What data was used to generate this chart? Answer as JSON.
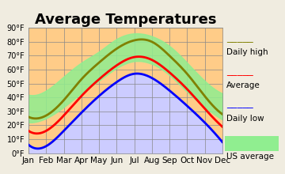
{
  "title": "Average Temperatures",
  "months": [
    "Jan",
    "Feb",
    "Mar",
    "Apr",
    "May",
    "Jun",
    "Jul",
    "Aug",
    "Sep",
    "Oct",
    "Nov",
    "Dec"
  ],
  "daily_high": [
    26,
    27,
    38,
    53,
    65,
    75,
    81,
    80,
    70,
    57,
    41,
    28
  ],
  "average": [
    16,
    16,
    27,
    41,
    53,
    63,
    69,
    67,
    58,
    46,
    32,
    19
  ],
  "daily_low": [
    6,
    5,
    16,
    29,
    41,
    51,
    57,
    54,
    45,
    34,
    22,
    8
  ],
  "us_high": [
    42,
    45,
    55,
    65,
    73,
    82,
    86,
    84,
    77,
    65,
    52,
    43
  ],
  "us_low": [
    22,
    25,
    33,
    43,
    52,
    61,
    66,
    64,
    56,
    44,
    33,
    24
  ],
  "ylim": [
    0,
    90
  ],
  "yticks": [
    0,
    10,
    20,
    30,
    40,
    50,
    60,
    70,
    80,
    90
  ],
  "ytick_labels": [
    "0°F",
    "10°F",
    "20°F",
    "30°F",
    "40°F",
    "50°F",
    "60°F",
    "70°F",
    "80°F",
    "90°F"
  ],
  "color_daily_high": "#808000",
  "color_average": "#ff0000",
  "color_daily_low": "#0000ff",
  "color_us_band": "#90ee90",
  "color_orange_bg": "#ffcc88",
  "color_blue_bg": "#ccccff",
  "color_green_fill": "#c8e6c8",
  "bg_color": "#f0ece0",
  "title_fontsize": 13,
  "legend_fontsize": 7.5
}
